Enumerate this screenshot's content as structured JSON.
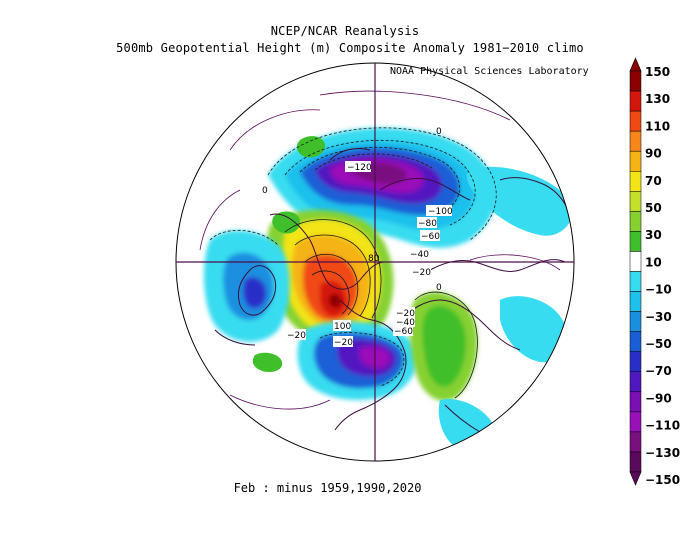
{
  "header": {
    "title": "NCEP/NCAR Reanalysis",
    "subtitle": "500mb Geopotential Height (m) Composite Anomaly 1981−2010 climo",
    "credit": "NOAA Physical Sciences Laboratory"
  },
  "caption": "Feb :  minus 1959,1990,2020",
  "map": {
    "projection": "north-polar-stereographic",
    "variable": "500mb Geopotential Height Anomaly",
    "units": "m",
    "contour_labels": [
      "−120",
      "−100",
      "−80",
      "−60",
      "−40",
      "−20",
      "−20",
      "0",
      "0",
      "0",
      "−20",
      "−40",
      "−60",
      "100",
      "80",
      "−20"
    ]
  },
  "colorbar": {
    "labels": [
      "150",
      "130",
      "110",
      "90",
      "70",
      "50",
      "30",
      "10",
      "−10",
      "−30",
      "−50",
      "−70",
      "−90",
      "−110",
      "−130",
      "−150"
    ],
    "colors": [
      "#8b0000",
      "#d4170c",
      "#f04a14",
      "#f7861a",
      "#f5b316",
      "#f2e416",
      "#c5e02a",
      "#86d130",
      "#3fbf2a",
      "#ffffff",
      "#38dcf0",
      "#1ec0ec",
      "#1a8fe0",
      "#1a5ed6",
      "#2a2ec8",
      "#5218c0",
      "#7a10b4",
      "#9a10b8",
      "#7a1080",
      "#5a0a5a"
    ]
  }
}
